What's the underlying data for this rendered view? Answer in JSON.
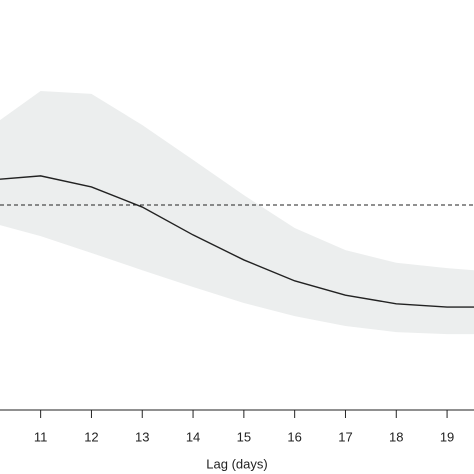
{
  "chart_data": {
    "type": "line",
    "x_label": "Lag (days)",
    "x": [
      10.2,
      11,
      12,
      13,
      14,
      15,
      16,
      17,
      18,
      19,
      19.53
    ],
    "series": [
      {
        "color": "#222222",
        "values": [
          1.063,
          1.071,
          1.044,
          0.995,
          0.927,
          0.866,
          0.815,
          0.78,
          0.759,
          0.751,
          0.751
        ]
      }
    ],
    "band": {
      "color": "#eceeee",
      "upper": [
        1.207,
        1.278,
        1.271,
        1.195,
        1.11,
        1.024,
        0.944,
        0.89,
        0.859,
        0.846,
        0.841
      ],
      "lower": [
        0.951,
        0.924,
        0.883,
        0.841,
        0.8,
        0.761,
        0.729,
        0.705,
        0.69,
        0.685,
        0.685
      ]
    },
    "reference": 1,
    "xlim": [
      10.2,
      19.53
    ],
    "xticks": [
      11,
      12,
      13,
      14,
      15,
      16,
      17,
      18,
      19
    ],
    "ylim": [
      0.5,
      1.5
    ]
  }
}
